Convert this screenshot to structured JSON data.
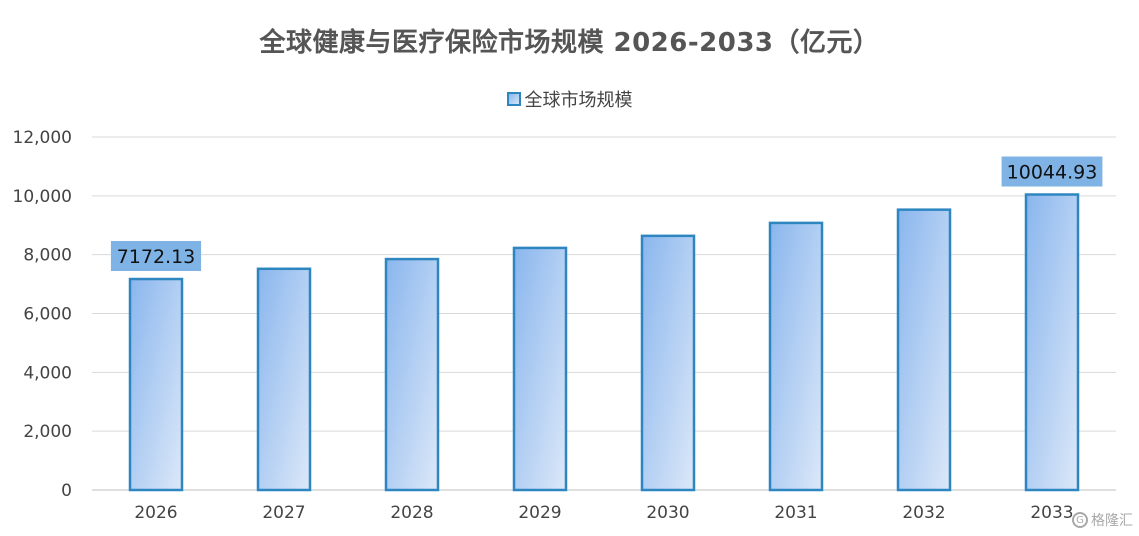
{
  "chart_data": {
    "type": "bar",
    "title": "全球健康与医疗保险市场规模 2026-2033（亿元）",
    "categories": [
      "2026",
      "2027",
      "2028",
      "2029",
      "2030",
      "2031",
      "2032",
      "2033"
    ],
    "series": [
      {
        "name": "全球市场规模",
        "values": [
          7172.13,
          7520,
          7850,
          8230,
          8640,
          9080,
          9530,
          10044.93
        ],
        "color": "#2e86c1"
      }
    ],
    "data_labels": [
      {
        "index": 0,
        "text": "7172.13"
      },
      {
        "index": 7,
        "text": "10044.93"
      }
    ],
    "y_ticks": [
      "0",
      "2,000",
      "4,000",
      "6,000",
      "8,000",
      "10,000",
      "12,000"
    ],
    "ylim": [
      0,
      12000
    ],
    "grid": true,
    "legend_position": "top-center",
    "label_bg_color": "#7fb3e6"
  },
  "watermark": {
    "text": "格隆汇"
  }
}
